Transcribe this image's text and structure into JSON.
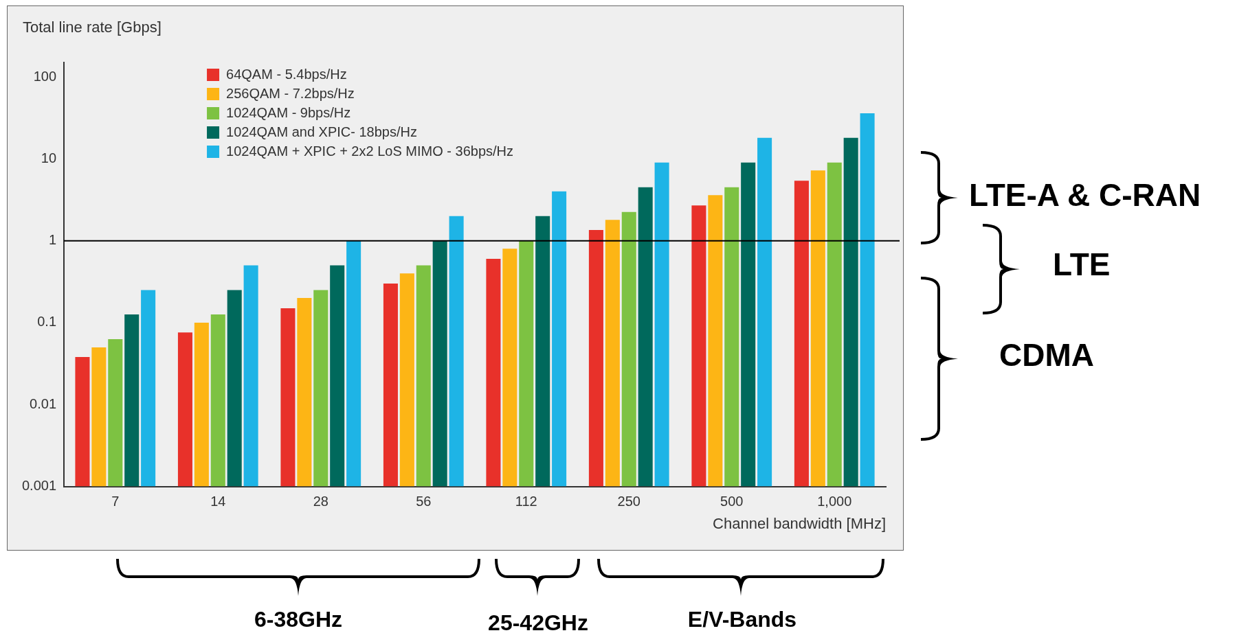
{
  "chart_data": {
    "type": "bar",
    "ylabel": "Total line rate [Gbps]",
    "xlabel": "Channel bandwidth [MHz]",
    "categories": [
      "7",
      "14",
      "28",
      "56",
      "112",
      "250",
      "500",
      "1,000"
    ],
    "series": [
      {
        "name": "64QAM - 5.4bps/Hz",
        "color": "#e8312a",
        "values": [
          0.038,
          0.076,
          0.15,
          0.3,
          0.6,
          1.35,
          2.7,
          5.4
        ]
      },
      {
        "name": "256QAM - 7.2bps/Hz",
        "color": "#fdb515",
        "values": [
          0.05,
          0.1,
          0.2,
          0.4,
          0.8,
          1.8,
          3.6,
          7.2
        ]
      },
      {
        "name": "1024QAM - 9bps/Hz",
        "color": "#7dc242",
        "values": [
          0.063,
          0.126,
          0.25,
          0.5,
          1.0,
          2.25,
          4.5,
          9
        ]
      },
      {
        "name": "1024QAM and XPIC- 18bps/Hz",
        "color": "#00695c",
        "values": [
          0.126,
          0.25,
          0.5,
          1.0,
          2.0,
          4.5,
          9,
          18
        ]
      },
      {
        "name": "1024QAM + XPIC + 2x2 LoS MIMO - 36bps/Hz",
        "color": "#1eb4e6",
        "values": [
          0.25,
          0.5,
          1.0,
          2.0,
          4.0,
          9,
          18,
          36
        ]
      }
    ],
    "log": "y",
    "ylim": [
      0.001,
      150
    ],
    "yticks": [
      0.001,
      0.01,
      0.1,
      1,
      10,
      100
    ],
    "grid": false,
    "legend": "top left",
    "ref_lines": [
      {
        "axis": "y",
        "value": 1,
        "color": "#000000"
      }
    ],
    "annotations": [
      "LTE-A & C-RAN",
      "LTE",
      "CDMA",
      "6-38GHz",
      "25-42GHz",
      "E/V-Bands"
    ]
  }
}
